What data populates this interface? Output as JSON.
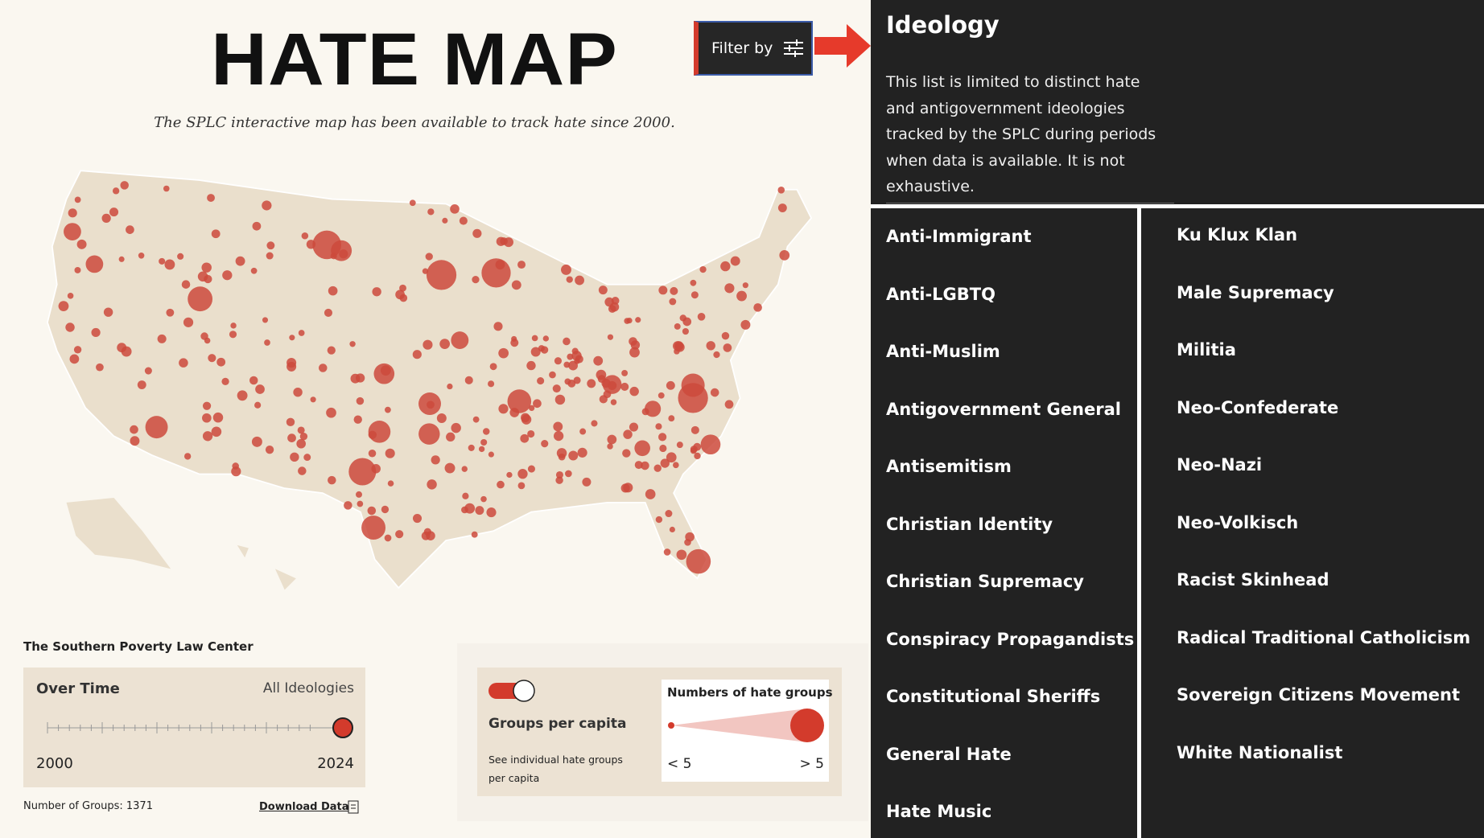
{
  "header": {
    "title": "HATE MAP",
    "subtitle": "The SPLC interactive map has been available to track hate since 2000.",
    "filter_button": "Filter by"
  },
  "panel": {
    "title": "Ideology",
    "description": "This list is limited to distinct hate and antigovernment ideologies tracked by the SPLC during periods when data is available. It is not exhaustive.",
    "ideologies_left": [
      "Anti-Immigrant",
      "Anti-LGBTQ",
      "Anti-Muslim",
      "Antigovernment General",
      "Antisemitism",
      "Christian Identity",
      "Christian Supremacy",
      "Conspiracy Propagandists",
      "Constitutional Sheriffs",
      "General Hate",
      "Hate Music"
    ],
    "ideologies_right": [
      "Ku Klux Klan",
      "Male Supremacy",
      "Militia",
      "Neo-Confederate",
      "Neo-Nazi",
      "Neo-Volkisch",
      "Racist Skinhead",
      "Radical Traditional Catholicism",
      "Sovereign Citizens Movement",
      "White Nationalist"
    ]
  },
  "footer": {
    "organization": "The Southern Poverty Law Center",
    "time_label": "Over Time",
    "ideology_label": "All Ideologies",
    "start_year": "2000",
    "end_year": "2024",
    "group_count": "Number of Groups: 1371",
    "download": "Download Data"
  },
  "legend": {
    "toggle_label": "Groups per capita",
    "toggle_note": "See individual hate groups per capita",
    "size_title": "Numbers of hate groups",
    "size_min": "< 5",
    "size_max": "> 5"
  }
}
